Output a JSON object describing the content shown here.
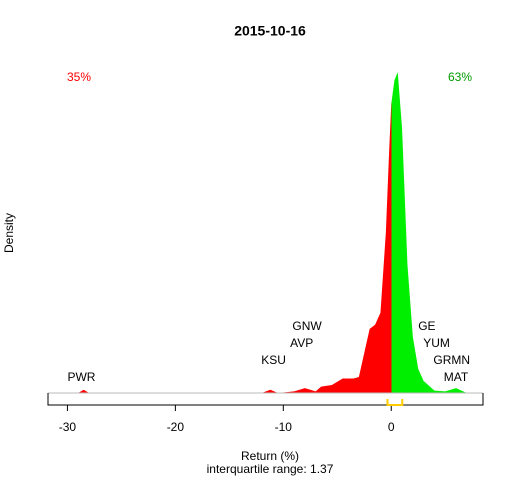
{
  "chart_data": {
    "type": "density",
    "title": "2015-10-16",
    "ylabel": "Density",
    "xlabel": "Return (%)",
    "subtitle": "interquartile range: 1.37",
    "x": [
      -29,
      -28.5,
      -28,
      -12,
      -11.2,
      -10.5,
      -9,
      -8,
      -7,
      -6.5,
      -5.5,
      -4.5,
      -3.5,
      -3,
      -2.5,
      -2,
      -1.5,
      -1,
      -0.5,
      -0.2,
      0,
      0.3,
      0.6,
      1,
      1.5,
      2,
      2.5,
      3,
      4,
      5,
      6,
      7
    ],
    "values": [
      0,
      0.004,
      0,
      0,
      0.004,
      0,
      0.002,
      0.006,
      0.002,
      0.008,
      0.01,
      0.018,
      0.018,
      0.02,
      0.05,
      0.08,
      0.085,
      0.1,
      0.2,
      0.3,
      0.36,
      0.39,
      0.4,
      0.33,
      0.16,
      0.07,
      0.03,
      0.015,
      0.003,
      0.002,
      0.006,
      0
    ],
    "split_at": 0,
    "color_below": "#ff0000",
    "color_above": "#00ee00",
    "share_below": "35%",
    "share_above": "63%",
    "quartiles": [
      -0.35,
      1.02
    ],
    "quartile_color": "#ffcc00",
    "annotations": [
      {
        "text": "PWR",
        "x": -28.7
      },
      {
        "text": "KSU",
        "x": -10.9
      },
      {
        "text": "AVP",
        "x": -8.3
      },
      {
        "text": "GNW",
        "x": -7.8
      },
      {
        "text": "GE",
        "x": 3.3
      },
      {
        "text": "YUM",
        "x": 4.2
      },
      {
        "text": "GRMN",
        "x": 5.6
      },
      {
        "text": "MAT",
        "x": 6.0
      }
    ],
    "xlim": [
      -31.8,
      8.5
    ],
    "ylim": [
      0,
      0.44
    ],
    "xticks": [
      -30,
      -20,
      -10,
      0
    ]
  }
}
